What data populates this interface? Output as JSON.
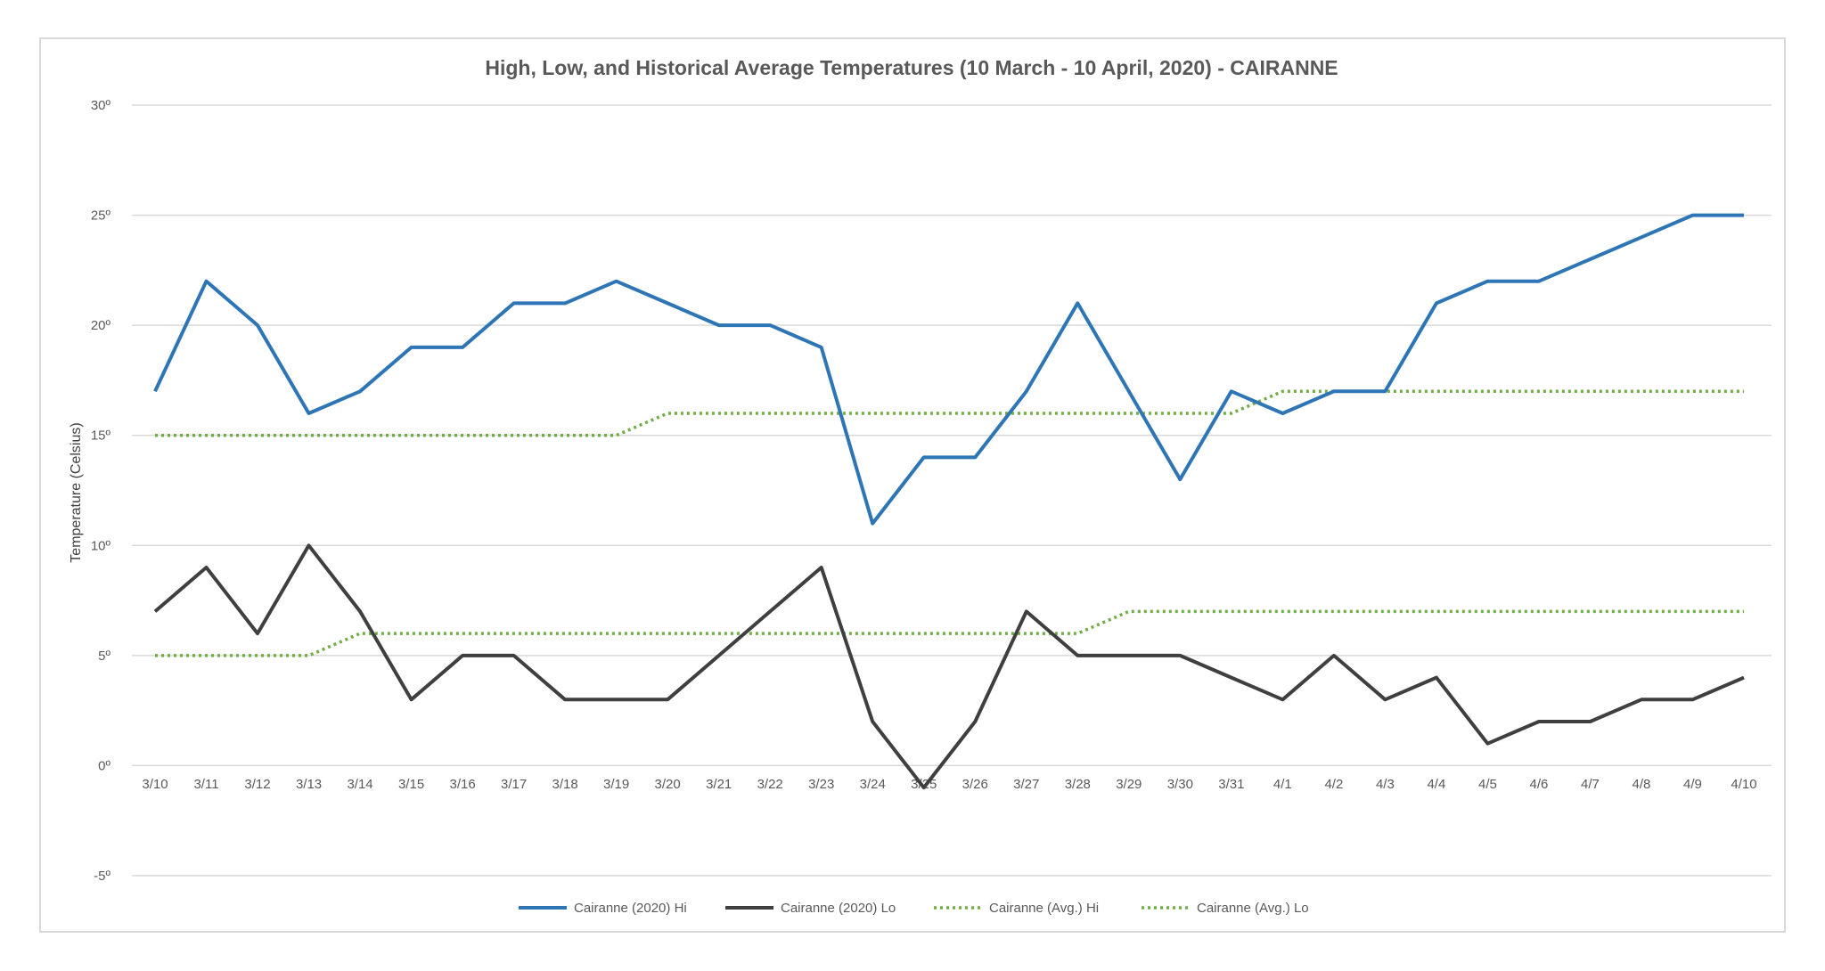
{
  "chart_data": {
    "type": "line",
    "title": "High, Low, and Historical Average Temperatures (10 March - 10 April, 2020) - CAIRANNE",
    "xlabel": "",
    "ylabel": "Temperature (Celsius)",
    "ylim": [
      -5,
      30
    ],
    "yticks": [
      -5,
      0,
      5,
      10,
      15,
      20,
      25,
      30
    ],
    "ytick_labels": [
      "-5º",
      "0º",
      "5º",
      "10º",
      "15º",
      "20º",
      "25º",
      "30º"
    ],
    "grid": true,
    "legend_position": "bottom",
    "categories": [
      "3/10",
      "3/11",
      "3/12",
      "3/13",
      "3/14",
      "3/15",
      "3/16",
      "3/17",
      "3/18",
      "3/19",
      "3/20",
      "3/21",
      "3/22",
      "3/23",
      "3/24",
      "3/25",
      "3/26",
      "3/27",
      "3/28",
      "3/29",
      "3/30",
      "3/31",
      "4/1",
      "4/2",
      "4/3",
      "4/4",
      "4/5",
      "4/6",
      "4/7",
      "4/8",
      "4/9",
      "4/10"
    ],
    "series": [
      {
        "name": "Cairanne (2020) Hi",
        "color": "#2e75b6",
        "style": "solid",
        "values": [
          17,
          22,
          20,
          16,
          17,
          19,
          19,
          21,
          21,
          22,
          21,
          20,
          20,
          19,
          11,
          14,
          14,
          17,
          21,
          17,
          13,
          17,
          16,
          17,
          17,
          21,
          22,
          22,
          23,
          24,
          25,
          25
        ]
      },
      {
        "name": "Cairanne (2020) Lo",
        "color": "#3f3f3f",
        "style": "solid",
        "values": [
          7,
          9,
          6,
          10,
          7,
          3,
          5,
          5,
          3,
          3,
          3,
          5,
          7,
          9,
          2,
          -1,
          2,
          7,
          5,
          5,
          5,
          4,
          3,
          5,
          3,
          4,
          1,
          2,
          2,
          3,
          3,
          4
        ]
      },
      {
        "name": "Cairanne (Avg.) Hi",
        "color": "#70ad47",
        "style": "dotted",
        "values": [
          15,
          15,
          15,
          15,
          15,
          15,
          15,
          15,
          15,
          15,
          16,
          16,
          16,
          16,
          16,
          16,
          16,
          16,
          16,
          16,
          16,
          16,
          17,
          17,
          17,
          17,
          17,
          17,
          17,
          17,
          17,
          17
        ]
      },
      {
        "name": "Cairanne (Avg.) Lo",
        "color": "#70ad47",
        "style": "dotted",
        "values": [
          5,
          5,
          5,
          5,
          6,
          6,
          6,
          6,
          6,
          6,
          6,
          6,
          6,
          6,
          6,
          6,
          6,
          6,
          6,
          7,
          7,
          7,
          7,
          7,
          7,
          7,
          7,
          7,
          7,
          7,
          7,
          7
        ]
      }
    ]
  }
}
